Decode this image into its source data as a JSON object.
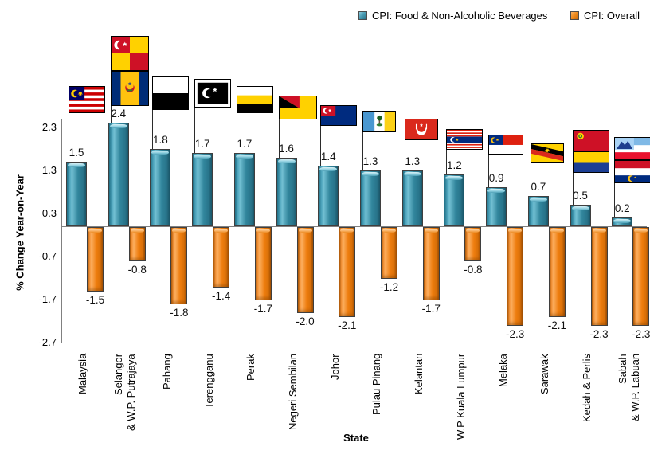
{
  "legend": [
    {
      "label": "CPI: Food & Non-Alcoholic Beverages",
      "color": "#31859C",
      "icon": "teal-swatch-icon"
    },
    {
      "label": "CPI: Overall",
      "color": "#E87A0C",
      "icon": "orange-swatch-icon"
    }
  ],
  "y_axis": {
    "title": "% Change Year-on-Year",
    "ticks": [
      2.3,
      1.3,
      0.3,
      -0.7,
      -1.7,
      -2.7
    ]
  },
  "x_axis": {
    "title": "State"
  },
  "chart_data": {
    "type": "bar",
    "categories": [
      "Malaysia",
      "Selangor\n& W.P. Putrajaya",
      "Pahang",
      "Terengganu",
      "Perak",
      "Negeri Sembilan",
      "Johor",
      "Pulau Pinang",
      "Kelantan",
      "W.P Kuala Lumpur",
      "Melaka",
      "Sarawak",
      "Kedah & Perlis",
      "Sabah\n& W.P. Labuan"
    ],
    "series": [
      {
        "name": "CPI: Food & Non-Alcoholic Beverages",
        "color": "#31859C",
        "values": [
          1.5,
          2.4,
          1.8,
          1.7,
          1.7,
          1.6,
          1.4,
          1.3,
          1.3,
          1.2,
          0.9,
          0.7,
          0.5,
          0.2
        ]
      },
      {
        "name": "CPI: Overall",
        "color": "#E87A0C",
        "values": [
          -1.5,
          -0.8,
          -1.8,
          -1.4,
          -1.7,
          -2.0,
          -2.1,
          -1.2,
          -1.7,
          -0.8,
          -2.3,
          -2.1,
          -2.3,
          -2.3
        ]
      }
    ],
    "xlabel": "State",
    "ylabel": "% Change Year-on-Year",
    "ylim": [
      -2.7,
      2.5
    ],
    "grid": false,
    "legend_position": "top-right",
    "flag_icons": [
      [
        "malaysia-flag-icon"
      ],
      [
        "selangor-flag-icon",
        "putrajaya-flag-icon"
      ],
      [
        "pahang-flag-icon"
      ],
      [
        "terengganu-flag-icon"
      ],
      [
        "perak-flag-icon"
      ],
      [
        "negeri-sembilan-flag-icon"
      ],
      [
        "johor-flag-icon"
      ],
      [
        "pulau-pinang-flag-icon"
      ],
      [
        "kelantan-flag-icon"
      ],
      [
        "kuala-lumpur-flag-icon"
      ],
      [
        "melaka-flag-icon"
      ],
      [
        "sarawak-flag-icon"
      ],
      [
        "kedah-flag-icon",
        "perlis-flag-icon"
      ],
      [
        "sabah-flag-icon",
        "labuan-flag-icon"
      ]
    ]
  }
}
